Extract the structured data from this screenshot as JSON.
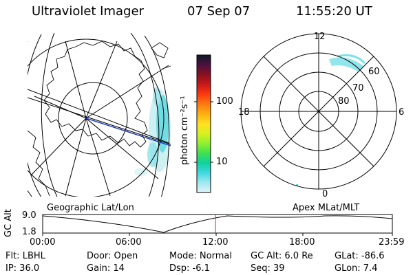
{
  "header": {
    "instrument": "Ultraviolet Imager",
    "date": "07 Sep 07",
    "time": "11:55:20 UT"
  },
  "colorbar": {
    "unit_label": "photon cm⁻²s⁻¹",
    "ticks": [
      "100",
      "10"
    ],
    "colors": [
      "#101828",
      "#4a1040",
      "#8a1020",
      "#c81818",
      "#ff3a10",
      "#ff7a10",
      "#ffb010",
      "#ffe020",
      "#d8f020",
      "#90f030",
      "#40e050",
      "#10d0a0",
      "#40d8e0",
      "#a0e8f0",
      "#e0f4f8"
    ]
  },
  "polar": {
    "labels": {
      "top": "12",
      "left": "18",
      "right": "6",
      "bottom": "0",
      "r60": "60",
      "r70": "70",
      "r80": "80"
    }
  },
  "maps": {
    "left_title": "Geographic Lat/Lon",
    "right_title": "Apex MLat/MLT"
  },
  "altitude": {
    "axis_label": "GC Alt",
    "y_max": "9.0",
    "y_min": "1.8",
    "x_ticks": [
      "00:00",
      "06:00",
      "12:00",
      "18:00",
      "23:59"
    ]
  },
  "info": {
    "filter": "Flt: LBHL",
    "ip": "IP: 36.0",
    "door": "Door: Open",
    "gain": "Gain: 14",
    "mode": "Mode: Normal",
    "dsp": "Dsp:    -6.1",
    "gc_alt": "GC Alt: 6.0 Re",
    "seq": "Seq: 39",
    "glat": "GLat:  -86.6",
    "glon": "GLon:    7.4"
  }
}
